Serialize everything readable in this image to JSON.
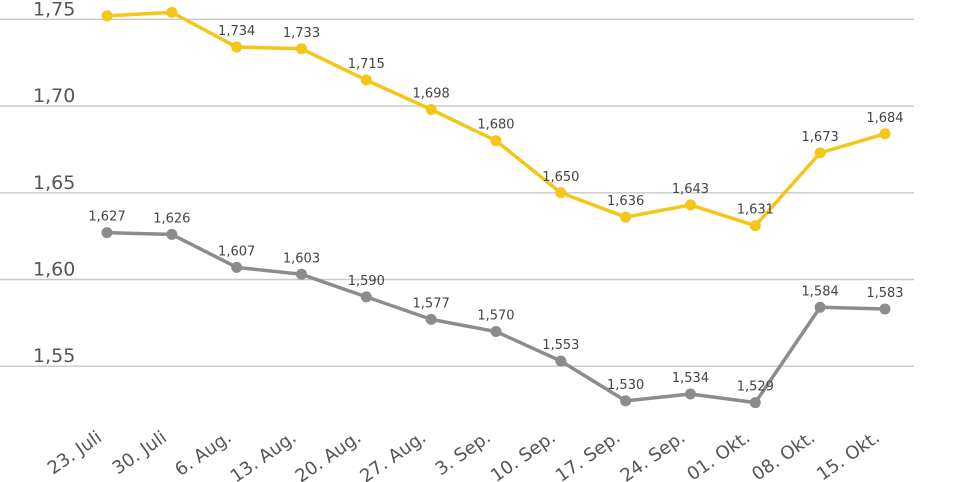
{
  "chart_data": {
    "type": "line",
    "categories": [
      "23. Juli",
      "30. Juli",
      "6. Aug.",
      "13. Aug.",
      "20. Aug.",
      "27. Aug.",
      "3. Sep.",
      "10. Sep.",
      "17. Sep.",
      "24. Sep.",
      "01. Okt.",
      "08. Okt.",
      "15. Okt."
    ],
    "series": [
      {
        "color": "#f5c518",
        "values": [
          1.752,
          1.754,
          1.734,
          1.733,
          1.715,
          1.698,
          1.68,
          1.65,
          1.636,
          1.643,
          1.631,
          1.673,
          1.684
        ],
        "labels": [
          "",
          "",
          "1,734",
          "1,733",
          "1,715",
          "1,698",
          "1,680",
          "1,650",
          "1,636",
          "1,643",
          "1,631",
          "1,673",
          "1,684"
        ]
      },
      {
        "color": "#8c8c8c",
        "values": [
          1.627,
          1.626,
          1.607,
          1.603,
          1.59,
          1.577,
          1.57,
          1.553,
          1.53,
          1.534,
          1.529,
          1.584,
          1.583
        ],
        "labels": [
          "1,627",
          "1,626",
          "1,607",
          "1,603",
          "1,590",
          "1,577",
          "1,570",
          "1,553",
          "1,530",
          "1,534",
          "1,529",
          "1,584",
          "1,583"
        ]
      }
    ],
    "yticks": [
      1.75,
      1.7,
      1.65,
      1.6,
      1.55
    ],
    "ytick_labels": [
      "1,75",
      "1,70",
      "1,65",
      "1,60",
      "1,55"
    ],
    "ylim": [
      1.519,
      1.7545
    ],
    "grid": true,
    "legend": "none"
  }
}
